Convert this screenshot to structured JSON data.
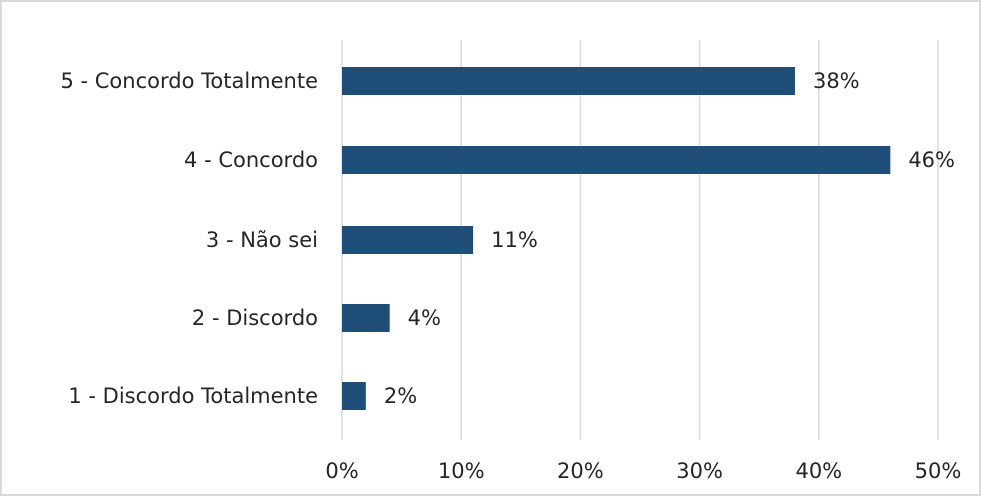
{
  "chart_data": {
    "type": "bar",
    "orientation": "horizontal",
    "categories": [
      "5 - Concordo Totalmente",
      "4 - Concordo",
      "3 - Não sei",
      "2 - Discordo",
      "1 - Discordo Totalmente"
    ],
    "values": [
      38,
      46,
      11,
      4,
      2
    ],
    "data_labels": [
      "38%",
      "46%",
      "11%",
      "4%",
      "2%"
    ],
    "xlim": [
      0,
      50
    ],
    "x_ticks": [
      0,
      10,
      20,
      30,
      40,
      50
    ],
    "x_tick_labels": [
      "0%",
      "10%",
      "20%",
      "30%",
      "40%",
      "50%"
    ],
    "title": "",
    "xlabel": "",
    "ylabel": "",
    "grid": "vertical",
    "legend": "none",
    "bar_color": "#1f4e79",
    "grid_color": "#d9d9d9"
  }
}
